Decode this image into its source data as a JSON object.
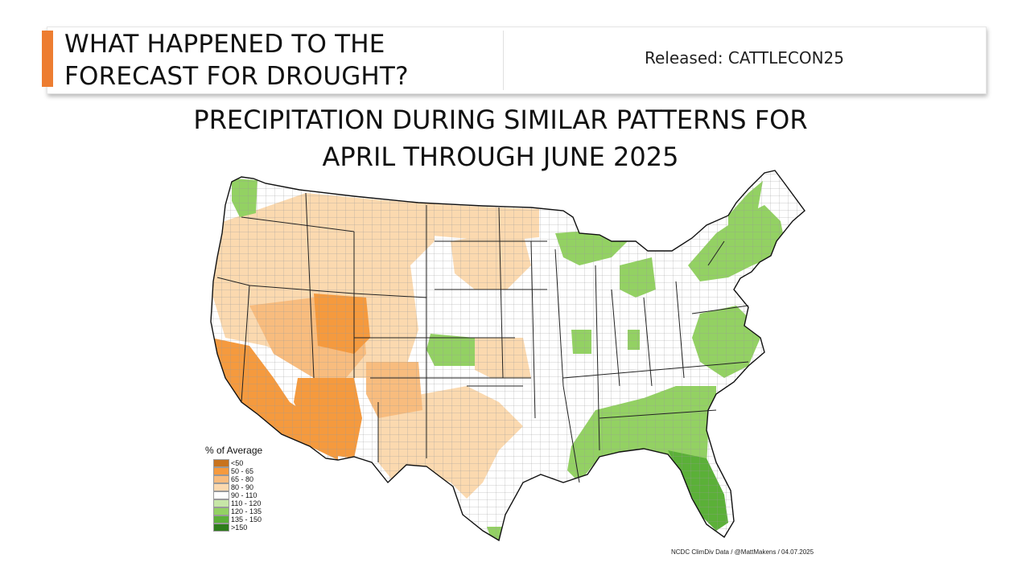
{
  "header": {
    "title": "WHAT HAPPENED TO THE FORECAST FOR DROUGHT?",
    "release": "Released: CATTLECON25"
  },
  "map": {
    "title": "PRECIPITATION DURING SIMILAR PATTERNS FOR APRIL THROUGH JUNE 2025",
    "legend": {
      "title": "% of Average",
      "items": [
        {
          "label": "<50",
          "color": "#C8731D"
        },
        {
          "label": "50 - 65",
          "color": "#F59A3E"
        },
        {
          "label": "65 - 80",
          "color": "#F8BC7E"
        },
        {
          "label": "80 - 90",
          "color": "#FBD9AF"
        },
        {
          "label": "90 - 110",
          "color": "#FFFFFF"
        },
        {
          "label": "110 - 120",
          "color": "#C7E6A7"
        },
        {
          "label": "120 - 135",
          "color": "#93D163"
        },
        {
          "label": "135 - 150",
          "color": "#5BB038"
        },
        {
          "label": ">150",
          "color": "#2E7D1C"
        }
      ]
    },
    "credit": "NCDC ClimDiv Data / @MattMakens / 04.07.2025"
  },
  "colors": {
    "accent": "#ED7D31"
  }
}
